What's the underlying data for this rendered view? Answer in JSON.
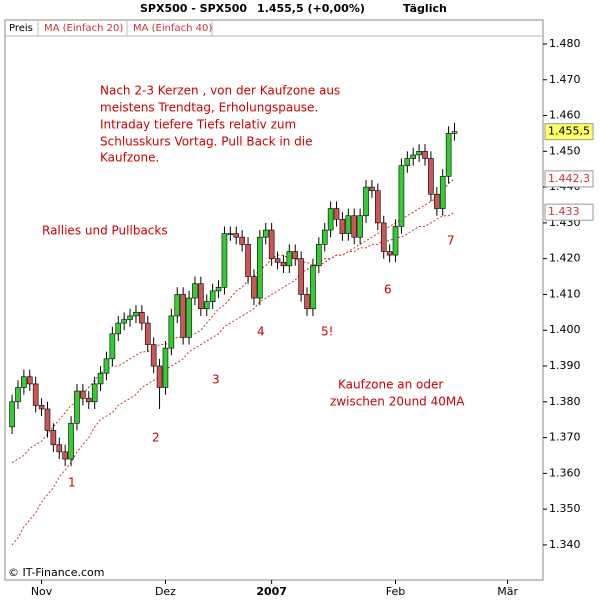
{
  "chart_data": {
    "type": "candlestick",
    "title": "SPX500 - SPX500",
    "last_price_text": "1.455,5 (+0,00%)",
    "period": "Täglich",
    "price_name": "Preis",
    "up_color": "#33cc33",
    "down_color": "#cc5555",
    "open": [
      1.373,
      1.38,
      1.384,
      1.387,
      1.385,
      1.379,
      1.378,
      1.372,
      1.368,
      1.366,
      1.364,
      1.374,
      1.383,
      1.381,
      1.38,
      1.385,
      1.388,
      1.392,
      1.399,
      1.402,
      1.403,
      1.404,
      1.405,
      1.402,
      1.396,
      1.39,
      1.384,
      1.395,
      1.404,
      1.41,
      1.398,
      1.409,
      1.413,
      1.406,
      1.408,
      1.411,
      1.412,
      1.427,
      1.427,
      1.426,
      1.424,
      1.415,
      1.409,
      1.426,
      1.428,
      1.42,
      1.419,
      1.418,
      1.422,
      1.42,
      1.41,
      1.406,
      1.418,
      1.424,
      1.428,
      1.434,
      1.431,
      1.427,
      1.432,
      1.426,
      1.432,
      1.44,
      1.439,
      1.43,
      1.422,
      1.421,
      1.429,
      1.446,
      1.448,
      1.449,
      1.45,
      1.448,
      1.438,
      1.434,
      1.443,
      1.455
    ],
    "high": [
      1.382,
      1.386,
      1.389,
      1.389,
      1.387,
      1.381,
      1.38,
      1.374,
      1.37,
      1.368,
      1.376,
      1.385,
      1.385,
      1.383,
      1.387,
      1.39,
      1.394,
      1.401,
      1.404,
      1.405,
      1.406,
      1.407,
      1.407,
      1.404,
      1.398,
      1.392,
      1.397,
      1.406,
      1.412,
      1.412,
      1.411,
      1.415,
      1.415,
      1.41,
      1.413,
      1.414,
      1.429,
      1.429,
      1.429,
      1.428,
      1.426,
      1.417,
      1.428,
      1.43,
      1.43,
      1.422,
      1.421,
      1.424,
      1.424,
      1.422,
      1.412,
      1.42,
      1.426,
      1.43,
      1.436,
      1.436,
      1.433,
      1.434,
      1.434,
      1.434,
      1.442,
      1.442,
      1.441,
      1.432,
      1.424,
      1.431,
      1.448,
      1.45,
      1.451,
      1.452,
      1.452,
      1.45,
      1.44,
      1.445,
      1.457,
      1.458
    ],
    "low": [
      1.371,
      1.378,
      1.382,
      1.383,
      1.377,
      1.376,
      1.37,
      1.366,
      1.364,
      1.362,
      1.362,
      1.372,
      1.379,
      1.378,
      1.378,
      1.383,
      1.386,
      1.39,
      1.397,
      1.4,
      1.401,
      1.402,
      1.4,
      1.394,
      1.388,
      1.378,
      1.382,
      1.393,
      1.402,
      1.396,
      1.396,
      1.407,
      1.404,
      1.404,
      1.406,
      1.409,
      1.41,
      1.425,
      1.424,
      1.422,
      1.413,
      1.407,
      1.407,
      1.424,
      1.418,
      1.417,
      1.416,
      1.416,
      1.418,
      1.408,
      1.404,
      1.404,
      1.416,
      1.422,
      1.426,
      1.429,
      1.425,
      1.425,
      1.424,
      1.424,
      1.43,
      1.437,
      1.428,
      1.42,
      1.419,
      1.419,
      1.427,
      1.444,
      1.446,
      1.447,
      1.446,
      1.436,
      1.432,
      1.432,
      1.441,
      1.453
    ],
    "close": [
      1.38,
      1.384,
      1.387,
      1.385,
      1.379,
      1.378,
      1.372,
      1.368,
      1.366,
      1.364,
      1.374,
      1.383,
      1.381,
      1.38,
      1.385,
      1.388,
      1.392,
      1.399,
      1.402,
      1.403,
      1.404,
      1.405,
      1.402,
      1.396,
      1.39,
      1.384,
      1.395,
      1.404,
      1.41,
      1.398,
      1.409,
      1.413,
      1.406,
      1.408,
      1.411,
      1.412,
      1.427,
      1.427,
      1.426,
      1.424,
      1.415,
      1.409,
      1.426,
      1.428,
      1.42,
      1.419,
      1.418,
      1.422,
      1.42,
      1.41,
      1.406,
      1.418,
      1.424,
      1.428,
      1.434,
      1.431,
      1.427,
      1.432,
      1.426,
      1.432,
      1.44,
      1.439,
      1.43,
      1.422,
      1.421,
      1.429,
      1.446,
      1.448,
      1.449,
      1.45,
      1.448,
      1.438,
      1.434,
      1.443,
      1.455,
      1.4555
    ],
    "price_label": {
      "value": 1.4555,
      "label": "1.455,5"
    },
    "series": [
      {
        "name": "MA (Einfach 20)",
        "color": "#cc3333",
        "last_label": {
          "value": 1.4423,
          "label": "1.442,3"
        },
        "values": [
          1.363,
          1.364,
          1.365,
          1.367,
          1.368,
          1.369,
          1.371,
          1.373,
          1.375,
          1.377,
          1.379,
          1.38,
          1.382,
          1.384,
          1.386,
          1.388,
          1.389,
          1.39,
          1.39,
          1.391,
          1.392,
          1.393,
          1.394,
          1.394,
          1.395,
          1.396,
          1.396,
          1.397,
          1.398,
          1.398,
          1.399,
          1.399,
          1.4,
          1.402,
          1.404,
          1.406,
          1.407,
          1.409,
          1.411,
          1.412,
          1.414,
          1.415,
          1.417,
          1.418,
          1.42,
          1.421,
          1.421,
          1.42,
          1.42,
          1.419,
          1.419,
          1.418,
          1.418,
          1.419,
          1.42,
          1.421,
          1.421,
          1.422,
          1.423,
          1.424,
          1.425,
          1.426,
          1.427,
          1.428,
          1.429,
          1.43,
          1.431,
          1.432,
          1.433,
          1.434,
          1.435,
          1.436,
          1.437,
          1.439,
          1.441,
          1.4423
        ]
      },
      {
        "name": "MA (Einfach 40)",
        "color": "#cc3333",
        "last_label": {
          "value": 1.433,
          "label": "1.433"
        },
        "values": [
          1.34,
          1.342,
          1.345,
          1.347,
          1.349,
          1.352,
          1.354,
          1.356,
          1.359,
          1.361,
          1.363,
          1.366,
          1.368,
          1.37,
          1.373,
          1.375,
          1.376,
          1.377,
          1.379,
          1.38,
          1.381,
          1.382,
          1.384,
          1.385,
          1.386,
          1.387,
          1.389,
          1.39,
          1.391,
          1.392,
          1.394,
          1.395,
          1.396,
          1.397,
          1.398,
          1.399,
          1.401,
          1.402,
          1.403,
          1.404,
          1.405,
          1.406,
          1.408,
          1.409,
          1.41,
          1.411,
          1.412,
          1.413,
          1.414,
          1.416,
          1.417,
          1.418,
          1.419,
          1.42,
          1.42,
          1.421,
          1.421,
          1.422,
          1.422,
          1.423,
          1.423,
          1.424,
          1.424,
          1.425,
          1.425,
          1.426,
          1.426,
          1.427,
          1.428,
          1.429,
          1.429,
          1.43,
          1.431,
          1.432,
          1.432,
          1.433
        ]
      }
    ],
    "ylim": [
      1.3302,
      1.4867
    ],
    "yticks": [
      {
        "value": 1.34,
        "label": "1.340"
      },
      {
        "value": 1.35,
        "label": "1.350"
      },
      {
        "value": 1.36,
        "label": "1.360"
      },
      {
        "value": 1.37,
        "label": "1.370"
      },
      {
        "value": 1.38,
        "label": "1.380"
      },
      {
        "value": 1.39,
        "label": "1.390"
      },
      {
        "value": 1.4,
        "label": "1.400"
      },
      {
        "value": 1.41,
        "label": "1.410"
      },
      {
        "value": 1.42,
        "label": "1.420"
      },
      {
        "value": 1.43,
        "label": "1.430"
      },
      {
        "value": 1.44,
        "label": "1.440"
      },
      {
        "value": 1.45,
        "label": "1.450"
      },
      {
        "value": 1.46,
        "label": "1.460"
      },
      {
        "value": 1.47,
        "label": "1.470"
      },
      {
        "value": 1.48,
        "label": "1.480"
      }
    ],
    "xlim": [
      -1.2,
      90
    ],
    "xticks": [
      {
        "value": 5,
        "label": "Nov"
      },
      {
        "value": 26,
        "label": "Dez"
      },
      {
        "value": 44,
        "label": "2007"
      },
      {
        "value": 65,
        "label": "Feb"
      },
      {
        "value": 84,
        "label": "Mär"
      }
    ],
    "annotations": [
      "Nach 2-3 Kerzen , von der Kaufzone aus",
      "meistens Trendtag,  Erholungspause.",
      "Intraday tiefere Tiefs relativ zum",
      "Schlusskurs Vortag. Pull Back in die",
      "Kaufzone.",
      "Rallies und Pullbacks",
      "1",
      "2",
      "3",
      "4",
      "5!",
      "6",
      "7",
      "Kaufzone an oder",
      "zwischen 20und 40MA"
    ],
    "source": "© IT-Finance.com"
  }
}
